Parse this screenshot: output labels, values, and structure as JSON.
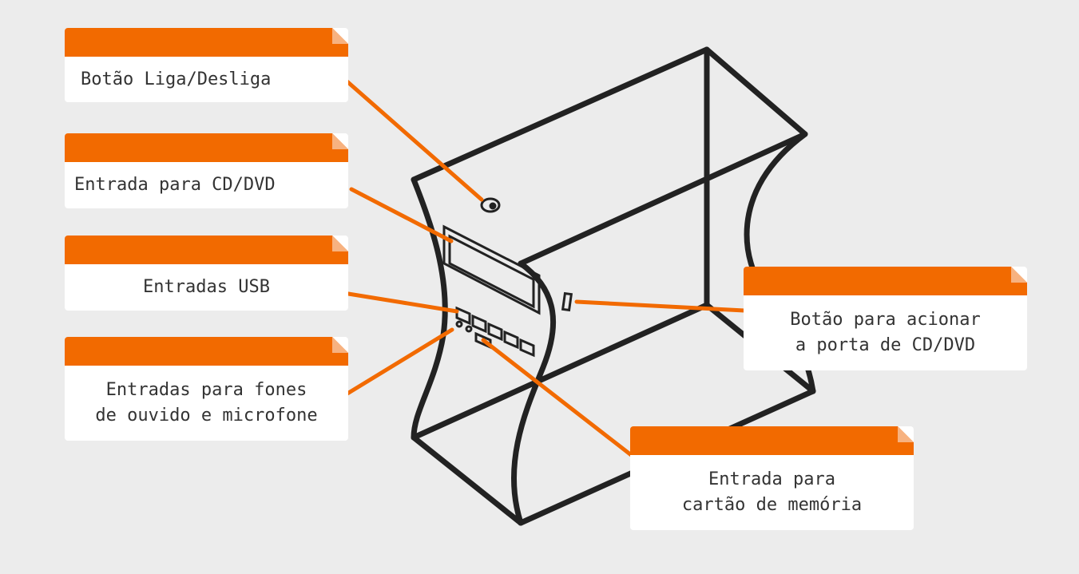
{
  "colors": {
    "background": "#ececec",
    "accent": "#f26a00",
    "outline": "#222222",
    "card": "#ffffff"
  },
  "image": "computer tower case outline with front-panel ports",
  "labels": {
    "power_button": {
      "lines": [
        "Botão Liga/Desliga"
      ]
    },
    "cd_dvd_drive": {
      "lines": [
        "Entrada para CD/DVD"
      ]
    },
    "usb_ports": {
      "lines": [
        "Entradas USB"
      ]
    },
    "audio_jacks": {
      "lines": [
        "Entradas para fones",
        "de ouvido e microfone"
      ]
    },
    "eject_button": {
      "lines": [
        "Botão para acionar",
        "a porta de CD/DVD"
      ]
    },
    "card_reader": {
      "lines": [
        "Entrada para",
        "cartão de memória"
      ]
    }
  }
}
